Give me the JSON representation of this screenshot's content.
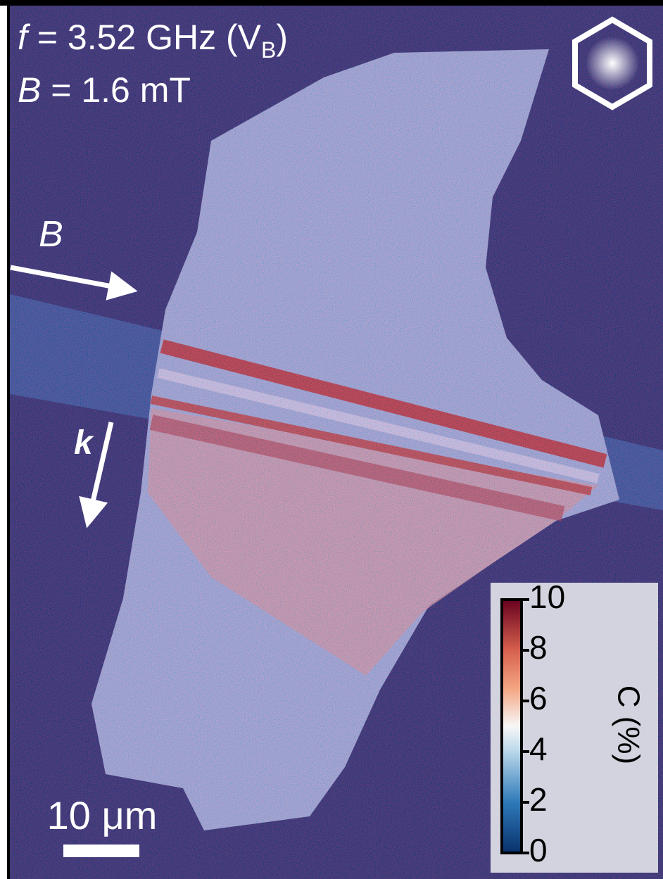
{
  "annotations": {
    "frequency": {
      "symbol": "f",
      "text": "= 3.52 GHz (V",
      "subscript": "B",
      "close": ")"
    },
    "field": {
      "symbol": "B",
      "text": "= 1.6 mT"
    },
    "field_arrow": "B",
    "wavevector_arrow": "k"
  },
  "scale_bar": "10 μm",
  "colorbar": {
    "label": "C (%)",
    "clim": [
      0,
      10
    ],
    "ticks": [
      0,
      2,
      4,
      6,
      8,
      10
    ]
  }
}
